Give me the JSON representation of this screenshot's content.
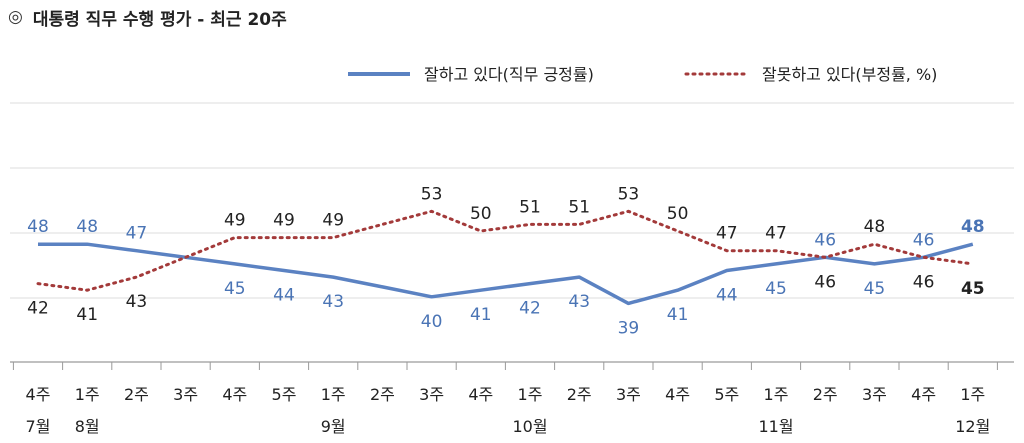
{
  "header": {
    "icon": "circle-dot-icon",
    "icon_glyph": "◎",
    "title": "대통령 직무 수행 평가 - 최근 20주"
  },
  "chart_data": {
    "type": "line",
    "title": "대통령 직무 수행 평가 - 최근 20주",
    "weeks": [
      "4주",
      "1주",
      "2주",
      "3주",
      "4주",
      "5주",
      "1주",
      "2주",
      "3주",
      "4주",
      "1주",
      "2주",
      "3주",
      "4주",
      "5주",
      "1주",
      "2주",
      "3주",
      "4주",
      "1주"
    ],
    "months": [
      "7월",
      "8월",
      "",
      "",
      "",
      "",
      "9월",
      "",
      "",
      "",
      "10월",
      "",
      "",
      "",
      "",
      "11월",
      "",
      "",
      "",
      "12월"
    ],
    "ylim": [
      0,
      100
    ],
    "grid": true,
    "legend_position": "top-right",
    "series": [
      {
        "name": "잘하고 있다(직무 긍정률)",
        "style": "solid",
        "color": "#5b82c2",
        "values": [
          48,
          48,
          47,
          null,
          45,
          44,
          43,
          null,
          40,
          41,
          42,
          43,
          39,
          41,
          44,
          45,
          46,
          45,
          46,
          48
        ]
      },
      {
        "name": "잘못하고 있다(부정률, %)",
        "style": "dotted",
        "color": "#a33a3a",
        "values": [
          42,
          41,
          43,
          null,
          49,
          49,
          49,
          null,
          53,
          50,
          51,
          51,
          53,
          50,
          47,
          47,
          46,
          48,
          46,
          45
        ]
      }
    ]
  }
}
